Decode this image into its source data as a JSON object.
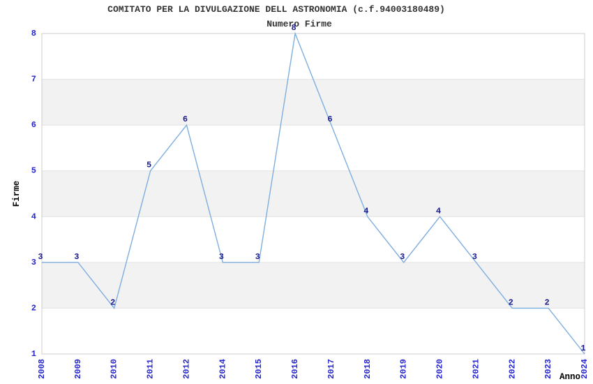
{
  "header": {
    "title": "COMITATO PER LA DIVULGAZIONE DELL ASTRONOMIA (c.f.94003180489)",
    "subtitle": "Numero Firme"
  },
  "chart_data": {
    "type": "line",
    "title": "COMITATO PER LA DIVULGAZIONE DELL ASTRONOMIA (c.f.94003180489)",
    "subtitle": "Numero Firme",
    "categories": [
      "2008",
      "2009",
      "2010",
      "2011",
      "2012",
      "2014",
      "2015",
      "2016",
      "2017",
      "2018",
      "2019",
      "2020",
      "2021",
      "2022",
      "2023",
      "2024"
    ],
    "values": [
      3,
      3,
      2,
      5,
      6,
      3,
      3,
      8,
      6,
      4,
      3,
      4,
      3,
      2,
      2,
      1
    ],
    "series_name": "Numero Firme",
    "xlabel": "Anno",
    "ylabel": "Firme",
    "ylim": [
      1,
      8
    ],
    "yticks": [
      1,
      2,
      3,
      4,
      5,
      6,
      7,
      8
    ],
    "grid": "alternating-horizontal-bands",
    "legend": "none",
    "data_labels": true,
    "colors": {
      "line": "#7eaede",
      "band": "#f2f2f2",
      "grid_line": "#e2e2e2",
      "spine": "#cccccc",
      "tick_label": "#2626cc",
      "data_label": "#1a1a8f",
      "axis_label": "#000000",
      "title_text": "#333333",
      "background": "#ffffff"
    }
  }
}
